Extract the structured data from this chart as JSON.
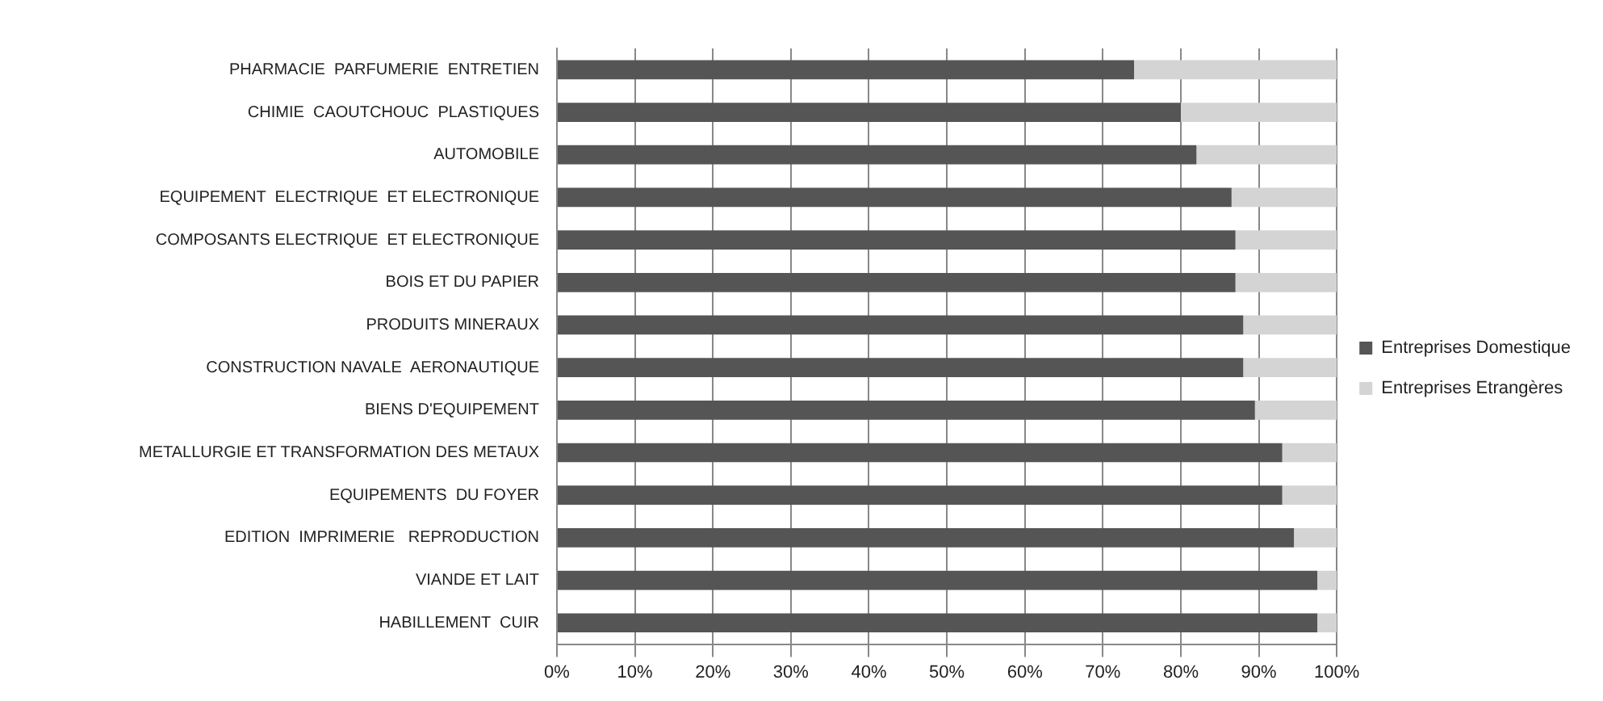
{
  "chart_data": {
    "type": "bar",
    "orientation": "horizontal",
    "stacked": true,
    "categories": [
      "PHARMACIE  PARFUMERIE  ENTRETIEN",
      "CHIMIE  CAOUTCHOUC  PLASTIQUES",
      "AUTOMOBILE",
      "EQUIPEMENT  ELECTRIQUE  ET ELECTRONIQUE",
      "COMPOSANTS ELECTRIQUE  ET ELECTRONIQUE",
      "BOIS ET DU PAPIER",
      "PRODUITS MINERAUX",
      "CONSTRUCTION NAVALE  AERONAUTIQUE",
      "BIENS D'EQUIPEMENT",
      "METALLURGIE ET TRANSFORMATION DES METAUX",
      "EQUIPEMENTS  DU FOYER",
      "EDITION  IMPRIMERIE   REPRODUCTION",
      "VIANDE ET LAIT",
      "HABILLEMENT  CUIR"
    ],
    "series": [
      {
        "name": "Entreprises Domestique",
        "color": "#555555",
        "values": [
          74,
          80,
          82,
          86.5,
          87,
          87,
          88,
          88,
          89.5,
          93,
          93,
          94.5,
          97.5,
          97.5
        ]
      },
      {
        "name": "Entreprises Etrangères",
        "color": "#d4d4d4",
        "values": [
          26,
          20,
          18,
          13.5,
          13,
          13,
          12,
          12,
          10.5,
          7,
          7,
          5.5,
          2.5,
          2.5
        ]
      }
    ],
    "xlim": [
      0,
      100
    ],
    "xticks": [
      {
        "value": 0,
        "label": "0%"
      },
      {
        "value": 10,
        "label": "10%"
      },
      {
        "value": 20,
        "label": "20%"
      },
      {
        "value": 30,
        "label": "30%"
      },
      {
        "value": 40,
        "label": "40%"
      },
      {
        "value": 50,
        "label": "50%"
      },
      {
        "value": 60,
        "label": "60%"
      },
      {
        "value": 70,
        "label": "70%"
      },
      {
        "value": 80,
        "label": "80%"
      },
      {
        "value": 90,
        "label": "90%"
      },
      {
        "value": 100,
        "label": "100%"
      }
    ],
    "grid": "x",
    "legend": "right"
  }
}
